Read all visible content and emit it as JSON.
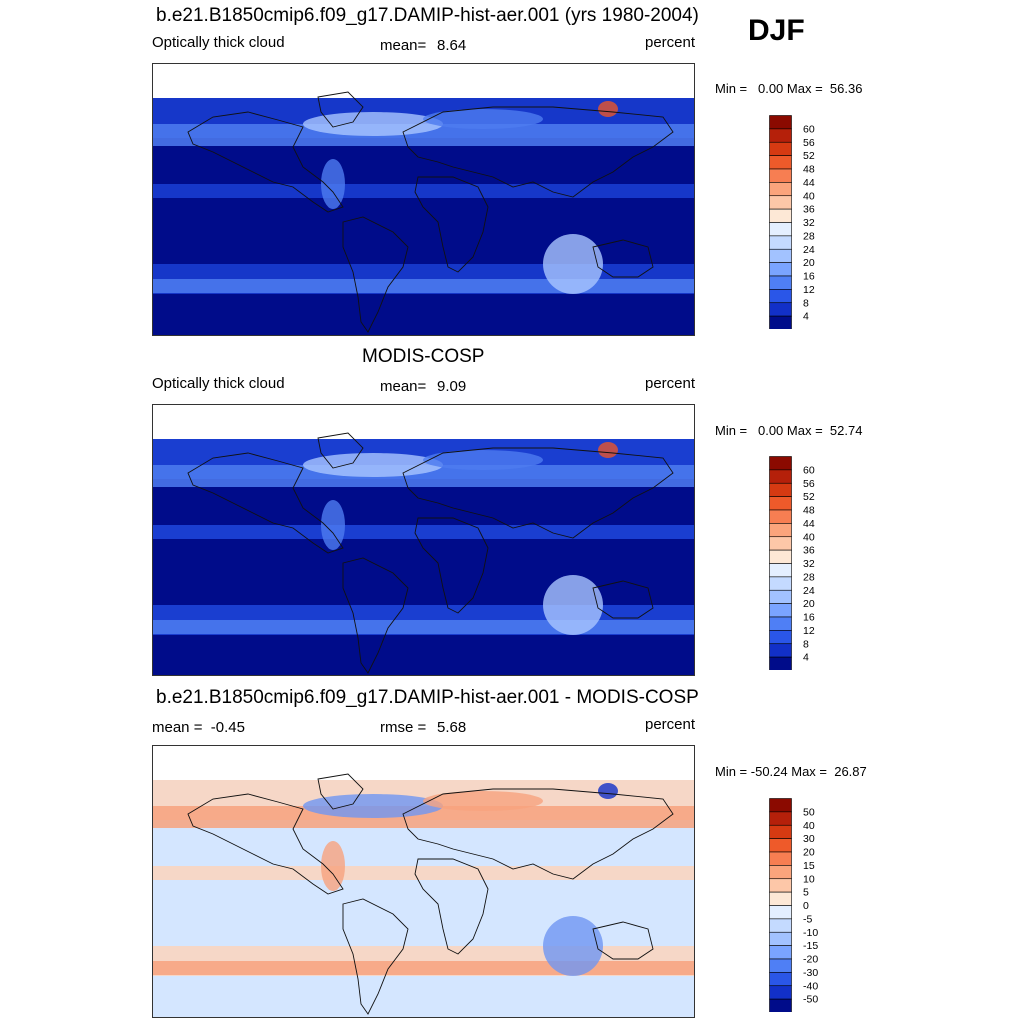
{
  "season": "DJF",
  "panels": [
    {
      "title": "b.e21.B1850cmip6.f09_g17.DAMIP-hist-aer.001 (yrs 1980-2004)",
      "left_label": "Optically thick cloud",
      "stat_label": "mean=",
      "stat_value": "8.64",
      "units": "percent",
      "minmax": "Min =   0.00 Max =  56.36",
      "colorbar": {
        "ticks": [
          "60",
          "56",
          "52",
          "48",
          "44",
          "40",
          "36",
          "32",
          "28",
          "24",
          "20",
          "16",
          "12",
          "8",
          "4"
        ],
        "colors": [
          "#8b0a00",
          "#b5200a",
          "#d63a12",
          "#ee5a2a",
          "#f77e52",
          "#fba47c",
          "#fdc7a8",
          "#fde8d6",
          "#e4efff",
          "#c4daff",
          "#a2c2ff",
          "#7aa4ff",
          "#4f7ff5",
          "#2a56e8",
          "#1230c8",
          "#000c8a"
        ]
      },
      "map_colors": {
        "base": "#000c8a",
        "mid": "#1a3fd4",
        "light": "#4d7cf0",
        "pale": "#a9c6ff",
        "hot": "#e8552a"
      }
    },
    {
      "title": "MODIS-COSP",
      "left_label": "Optically thick cloud",
      "stat_label": "mean=",
      "stat_value": "9.09",
      "units": "percent",
      "minmax": "Min =   0.00 Max =  52.74",
      "colorbar": {
        "ticks": [
          "60",
          "56",
          "52",
          "48",
          "44",
          "40",
          "36",
          "32",
          "28",
          "24",
          "20",
          "16",
          "12",
          "8",
          "4"
        ],
        "colors": [
          "#8b0a00",
          "#b5200a",
          "#d63a12",
          "#ee5a2a",
          "#f77e52",
          "#fba47c",
          "#fdc7a8",
          "#fde8d6",
          "#e4efff",
          "#c4daff",
          "#a2c2ff",
          "#7aa4ff",
          "#4f7ff5",
          "#2a56e8",
          "#1230c8",
          "#000c8a"
        ]
      },
      "map_colors": {
        "base": "#000c8a",
        "mid": "#1f48dc",
        "light": "#4d7cf0",
        "pale": "#a9c6ff",
        "hot": "#e8552a"
      }
    },
    {
      "title": "b.e21.B1850cmip6.f09_g17.DAMIP-hist-aer.001 - MODIS-COSP",
      "left_label": "mean =  -0.45",
      "stat_label": "rmse =",
      "stat_value": "5.68",
      "units": "percent",
      "minmax": "Min = -50.24 Max =  26.87",
      "colorbar": {
        "ticks": [
          "50",
          "40",
          "30",
          "20",
          "15",
          "10",
          "5",
          "0",
          "-5",
          "-10",
          "-15",
          "-20",
          "-30",
          "-40",
          "-50"
        ],
        "colors": [
          "#8b0a00",
          "#b5200a",
          "#d63a12",
          "#ee5a2a",
          "#f77e52",
          "#fba47c",
          "#fdc7a8",
          "#fde8d6",
          "#e4efff",
          "#c4daff",
          "#a2c2ff",
          "#7aa4ff",
          "#4f7ff5",
          "#2a56e8",
          "#1230c8",
          "#000c8a"
        ]
      },
      "map_colors": {
        "base": "#d4e6ff",
        "mid": "#fcd3bd",
        "light": "#f7a27e",
        "pale": "#6f96f2",
        "hot": "#1230c8"
      }
    }
  ]
}
